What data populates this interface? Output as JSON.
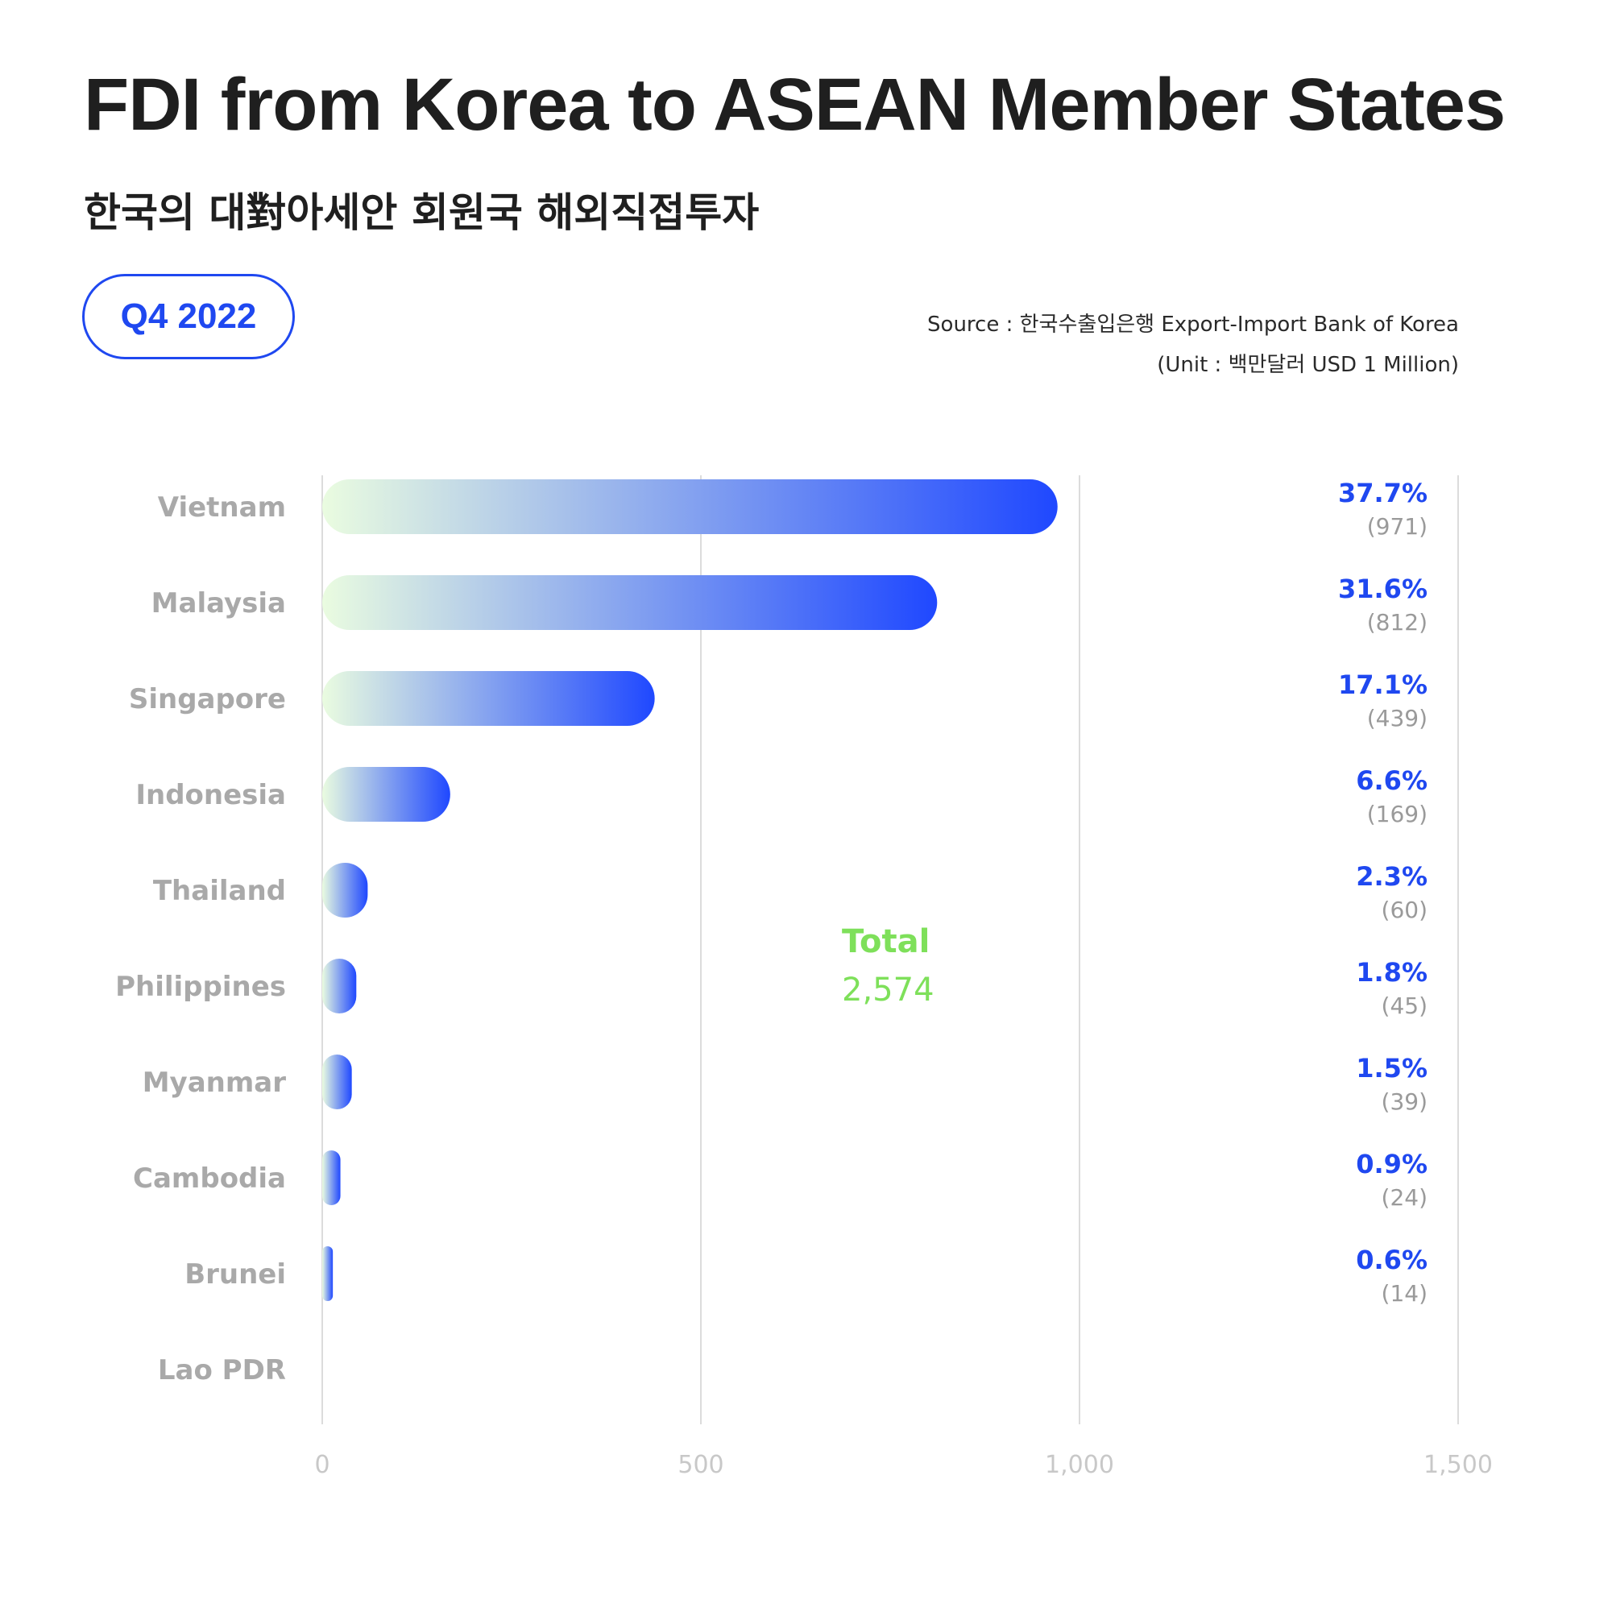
{
  "header": {
    "title": "FDI from Korea to ASEAN Member States",
    "subtitle": "한국의 대對아세안 회원국 해외직접투자",
    "period": "Q4 2022",
    "source": "Source :  한국수출입은행 Export-Import Bank of Korea",
    "unit": "(Unit : 백만달러 USD 1 Million)"
  },
  "colors": {
    "bar_start": "#eafce0",
    "bar_end": "#1f48ff",
    "accent_blue": "#1f48f0",
    "total_green": "#7ee05a"
  },
  "chart_data": {
    "type": "bar",
    "orientation": "horizontal",
    "title": "FDI from Korea to ASEAN Member States",
    "categories": [
      "Vietnam",
      "Malaysia",
      "Singapore",
      "Indonesia",
      "Thailand",
      "Philippines",
      "Myanmar",
      "Cambodia",
      "Brunei",
      "Lao PDR"
    ],
    "values": [
      971,
      812,
      439,
      169,
      60,
      45,
      39,
      24,
      14,
      0
    ],
    "value_labels": [
      "(971)",
      "(812)",
      "(439)",
      "(169)",
      "(60)",
      "(45)",
      "(39)",
      "(24)",
      "(14)",
      ""
    ],
    "percent_labels": [
      "37.7%",
      "31.6%",
      "17.1%",
      "6.6%",
      "2.3%",
      "1.8%",
      "1.5%",
      "0.9%",
      "0.6%",
      ""
    ],
    "xlim": [
      0,
      1500
    ],
    "ticks": [
      0,
      500,
      1000,
      1500
    ],
    "tick_labels": [
      "0",
      "500",
      "1,000",
      "1,500"
    ],
    "grid": true,
    "total_label": "Total",
    "total_value": "2,574"
  }
}
